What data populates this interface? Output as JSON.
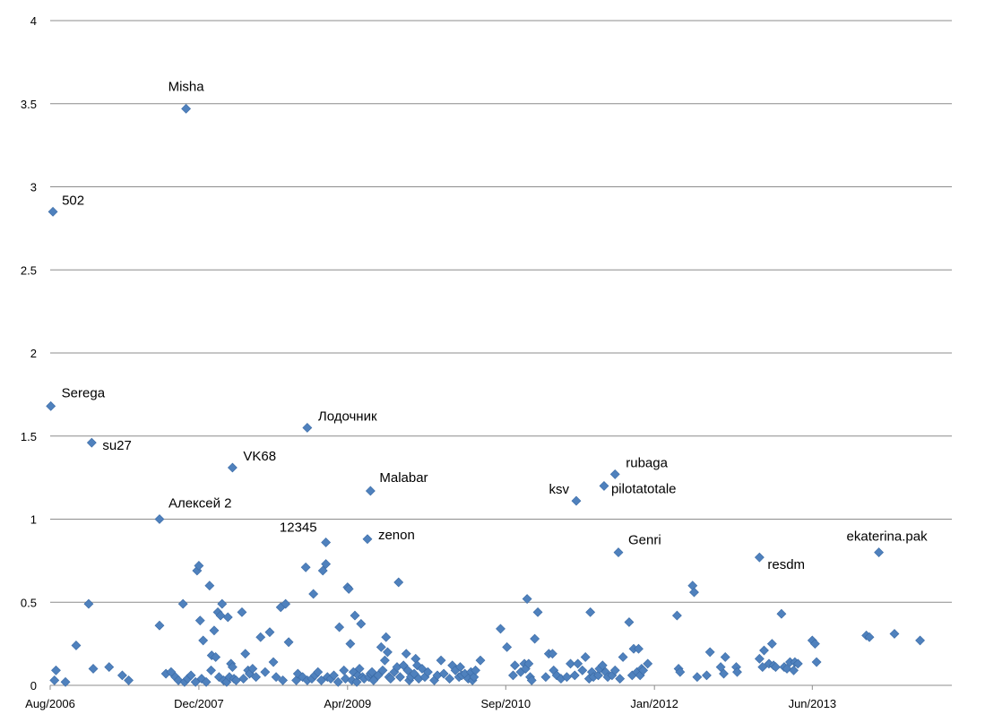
{
  "chart_data": {
    "type": "scatter",
    "title": "",
    "xlabel": "",
    "ylabel": "",
    "xaxis": {
      "min": "2006-08-01",
      "max": "2014-09-01",
      "ticks": [
        "Aug/2006",
        "Dec/2007",
        "Apr/2009",
        "Sep/2010",
        "Jan/2012",
        "Jun/2013"
      ]
    },
    "yaxis": {
      "min": 0,
      "max": 4,
      "ticks": [
        "0",
        "0.5",
        "1",
        "1.5",
        "2",
        "2.5",
        "3",
        "3.5",
        "4"
      ]
    },
    "grid": true,
    "marker_color": "#4F81BD",
    "labeled_points": [
      {
        "label": "Misha",
        "x": "2007-10-20",
        "y": 3.47
      },
      {
        "label": "502",
        "x": "2006-08-10",
        "y": 2.85
      },
      {
        "label": "Serega",
        "x": "2006-08-03",
        "y": 1.68
      },
      {
        "label": "su27",
        "x": "2006-12-15",
        "y": 1.46
      },
      {
        "label": "Лодочник",
        "x": "2008-11-20",
        "y": 1.55
      },
      {
        "label": "VK68",
        "x": "2008-03-20",
        "y": 1.31
      },
      {
        "label": "Алексей 2",
        "x": "2007-07-25",
        "y": 1.0
      },
      {
        "label": "Malabar",
        "x": "2009-06-15",
        "y": 1.17
      },
      {
        "label": "12345",
        "x": "2009-01-20",
        "y": 0.86
      },
      {
        "label": "zenon",
        "x": "2009-06-05",
        "y": 0.88
      },
      {
        "label": "rubaga",
        "x": "2011-08-25",
        "y": 1.27
      },
      {
        "label": "pilotatotale",
        "x": "2011-07-20",
        "y": 1.2
      },
      {
        "label": "ksv",
        "x": "2011-04-20",
        "y": 1.11
      },
      {
        "label": "Genri",
        "x": "2011-09-05",
        "y": 0.8
      },
      {
        "label": "resdm",
        "x": "2012-12-10",
        "y": 0.77
      },
      {
        "label": "ekaterina.pak",
        "x": "2014-01-05",
        "y": 0.8
      }
    ],
    "points": [
      [
        "2006-08-15",
        0.03
      ],
      [
        "2006-08-20",
        0.09
      ],
      [
        "2006-09-20",
        0.02
      ],
      [
        "2006-10-25",
        0.24
      ],
      [
        "2006-12-05",
        0.49
      ],
      [
        "2006-12-20",
        0.1
      ],
      [
        "2007-02-10",
        0.11
      ],
      [
        "2007-03-25",
        0.06
      ],
      [
        "2007-04-15",
        0.03
      ],
      [
        "2007-07-25",
        0.36
      ],
      [
        "2007-08-15",
        0.07
      ],
      [
        "2007-09-01",
        0.08
      ],
      [
        "2007-09-15",
        0.05
      ],
      [
        "2007-09-25",
        0.03
      ],
      [
        "2007-10-10",
        0.49
      ],
      [
        "2007-10-15",
        0.02
      ],
      [
        "2007-10-25",
        0.04
      ],
      [
        "2007-11-05",
        0.06
      ],
      [
        "2007-11-20",
        0.02
      ],
      [
        "2007-11-25",
        0.69
      ],
      [
        "2007-12-01",
        0.72
      ],
      [
        "2007-12-05",
        0.39
      ],
      [
        "2007-12-10",
        0.04
      ],
      [
        "2007-12-15",
        0.27
      ],
      [
        "2007-12-25",
        0.02
      ],
      [
        "2008-01-05",
        0.6
      ],
      [
        "2008-01-10",
        0.09
      ],
      [
        "2008-01-12",
        0.18
      ],
      [
        "2008-01-20",
        0.33
      ],
      [
        "2008-01-25",
        0.17
      ],
      [
        "2008-02-01",
        0.44
      ],
      [
        "2008-02-05",
        0.05
      ],
      [
        "2008-02-10",
        0.42
      ],
      [
        "2008-02-15",
        0.49
      ],
      [
        "2008-02-20",
        0.03
      ],
      [
        "2008-03-01",
        0.02
      ],
      [
        "2008-03-05",
        0.41
      ],
      [
        "2008-03-10",
        0.05
      ],
      [
        "2008-03-15",
        0.13
      ],
      [
        "2008-03-20",
        0.11
      ],
      [
        "2008-03-25",
        0.04
      ],
      [
        "2008-04-01",
        0.03
      ],
      [
        "2008-04-20",
        0.44
      ],
      [
        "2008-04-25",
        0.04
      ],
      [
        "2008-05-01",
        0.19
      ],
      [
        "2008-05-10",
        0.09
      ],
      [
        "2008-05-15",
        0.07
      ],
      [
        "2008-05-25",
        0.1
      ],
      [
        "2008-06-05",
        0.05
      ],
      [
        "2008-06-20",
        0.29
      ],
      [
        "2008-07-05",
        0.08
      ],
      [
        "2008-07-20",
        0.32
      ],
      [
        "2008-08-01",
        0.14
      ],
      [
        "2008-08-10",
        0.05
      ],
      [
        "2008-08-25",
        0.47
      ],
      [
        "2008-09-01",
        0.03
      ],
      [
        "2008-09-10",
        0.49
      ],
      [
        "2008-09-20",
        0.26
      ],
      [
        "2008-10-15",
        0.03
      ],
      [
        "2008-10-20",
        0.07
      ],
      [
        "2008-11-05",
        0.05
      ],
      [
        "2008-11-15",
        0.71
      ],
      [
        "2008-11-20",
        0.03
      ],
      [
        "2008-12-05",
        0.04
      ],
      [
        "2008-12-10",
        0.55
      ],
      [
        "2008-12-15",
        0.06
      ],
      [
        "2008-12-25",
        0.08
      ],
      [
        "2009-01-05",
        0.03
      ],
      [
        "2009-01-10",
        0.69
      ],
      [
        "2009-01-20",
        0.73
      ],
      [
        "2009-01-25",
        0.05
      ],
      [
        "2009-02-05",
        0.04
      ],
      [
        "2009-02-15",
        0.06
      ],
      [
        "2009-03-01",
        0.02
      ],
      [
        "2009-03-05",
        0.35
      ],
      [
        "2009-03-20",
        0.09
      ],
      [
        "2009-03-25",
        0.04
      ],
      [
        "2009-04-01",
        0.59
      ],
      [
        "2009-04-05",
        0.58
      ],
      [
        "2009-04-10",
        0.25
      ],
      [
        "2009-04-15",
        0.03
      ],
      [
        "2009-04-20",
        0.08
      ],
      [
        "2009-04-25",
        0.42
      ],
      [
        "2009-05-01",
        0.02
      ],
      [
        "2009-05-05",
        0.06
      ],
      [
        "2009-05-10",
        0.1
      ],
      [
        "2009-05-15",
        0.37
      ],
      [
        "2009-05-20",
        0.05
      ],
      [
        "2009-05-25",
        0.04
      ],
      [
        "2009-06-10",
        0.05
      ],
      [
        "2009-06-15",
        0.07
      ],
      [
        "2009-06-20",
        0.08
      ],
      [
        "2009-06-25",
        0.03
      ],
      [
        "2009-07-10",
        0.06
      ],
      [
        "2009-07-20",
        0.23
      ],
      [
        "2009-07-25",
        0.09
      ],
      [
        "2009-08-01",
        0.15
      ],
      [
        "2009-08-05",
        0.29
      ],
      [
        "2009-08-10",
        0.2
      ],
      [
        "2009-08-15",
        0.05
      ],
      [
        "2009-08-20",
        0.04
      ],
      [
        "2009-09-01",
        0.08
      ],
      [
        "2009-09-10",
        0.11
      ],
      [
        "2009-09-15",
        0.62
      ],
      [
        "2009-09-20",
        0.05
      ],
      [
        "2009-10-01",
        0.12
      ],
      [
        "2009-10-10",
        0.19
      ],
      [
        "2009-10-15",
        0.09
      ],
      [
        "2009-10-20",
        0.03
      ],
      [
        "2009-10-25",
        0.05
      ],
      [
        "2009-11-05",
        0.07
      ],
      [
        "2009-11-10",
        0.16
      ],
      [
        "2009-11-15",
        0.12
      ],
      [
        "2009-11-20",
        0.04
      ],
      [
        "2009-12-01",
        0.1
      ],
      [
        "2009-12-10",
        0.05
      ],
      [
        "2009-12-20",
        0.08
      ],
      [
        "2010-01-10",
        0.03
      ],
      [
        "2010-01-20",
        0.06
      ],
      [
        "2010-02-01",
        0.15
      ],
      [
        "2010-02-10",
        0.07
      ],
      [
        "2010-03-01",
        0.04
      ],
      [
        "2010-03-10",
        0.12
      ],
      [
        "2010-03-20",
        0.09
      ],
      [
        "2010-04-01",
        0.05
      ],
      [
        "2010-04-05",
        0.11
      ],
      [
        "2010-04-10",
        0.06
      ],
      [
        "2010-04-20",
        0.07
      ],
      [
        "2010-05-01",
        0.04
      ],
      [
        "2010-05-10",
        0.08
      ],
      [
        "2010-05-15",
        0.03
      ],
      [
        "2010-05-20",
        0.05
      ],
      [
        "2010-05-25",
        0.09
      ],
      [
        "2010-06-10",
        0.15
      ],
      [
        "2010-08-15",
        0.34
      ],
      [
        "2010-09-05",
        0.23
      ],
      [
        "2010-09-25",
        0.06
      ],
      [
        "2010-10-01",
        0.12
      ],
      [
        "2010-10-20",
        0.08
      ],
      [
        "2010-11-01",
        0.13
      ],
      [
        "2010-11-05",
        0.1
      ],
      [
        "2010-11-10",
        0.52
      ],
      [
        "2010-11-15",
        0.13
      ],
      [
        "2010-11-20",
        0.05
      ],
      [
        "2010-11-25",
        0.03
      ],
      [
        "2010-12-05",
        0.28
      ],
      [
        "2010-12-15",
        0.44
      ],
      [
        "2011-01-10",
        0.05
      ],
      [
        "2011-01-20",
        0.19
      ],
      [
        "2011-02-01",
        0.19
      ],
      [
        "2011-02-05",
        0.09
      ],
      [
        "2011-02-15",
        0.06
      ],
      [
        "2011-03-01",
        0.04
      ],
      [
        "2011-03-20",
        0.05
      ],
      [
        "2011-04-01",
        0.13
      ],
      [
        "2011-04-15",
        0.06
      ],
      [
        "2011-04-25",
        0.13
      ],
      [
        "2011-05-10",
        0.09
      ],
      [
        "2011-05-20",
        0.17
      ],
      [
        "2011-06-01",
        0.04
      ],
      [
        "2011-06-05",
        0.44
      ],
      [
        "2011-06-10",
        0.08
      ],
      [
        "2011-06-15",
        0.05
      ],
      [
        "2011-07-01",
        0.06
      ],
      [
        "2011-07-05",
        0.1
      ],
      [
        "2011-07-15",
        0.12
      ],
      [
        "2011-07-25",
        0.08
      ],
      [
        "2011-08-01",
        0.05
      ],
      [
        "2011-08-15",
        0.06
      ],
      [
        "2011-08-25",
        0.09
      ],
      [
        "2011-09-10",
        0.04
      ],
      [
        "2011-09-20",
        0.17
      ],
      [
        "2011-10-10",
        0.38
      ],
      [
        "2011-10-20",
        0.06
      ],
      [
        "2011-10-25",
        0.22
      ],
      [
        "2011-11-05",
        0.08
      ],
      [
        "2011-11-10",
        0.22
      ],
      [
        "2011-11-15",
        0.06
      ],
      [
        "2011-11-20",
        0.1
      ],
      [
        "2011-11-25",
        0.09
      ],
      [
        "2011-12-10",
        0.13
      ],
      [
        "2012-03-15",
        0.42
      ],
      [
        "2012-03-20",
        0.1
      ],
      [
        "2012-03-25",
        0.08
      ],
      [
        "2012-05-05",
        0.6
      ],
      [
        "2012-05-10",
        0.56
      ],
      [
        "2012-05-20",
        0.05
      ],
      [
        "2012-06-20",
        0.06
      ],
      [
        "2012-07-01",
        0.2
      ],
      [
        "2012-08-05",
        0.11
      ],
      [
        "2012-08-15",
        0.07
      ],
      [
        "2012-08-20",
        0.17
      ],
      [
        "2012-09-25",
        0.11
      ],
      [
        "2012-09-28",
        0.08
      ],
      [
        "2012-12-10",
        0.16
      ],
      [
        "2012-12-20",
        0.11
      ],
      [
        "2012-12-25",
        0.21
      ],
      [
        "2013-01-10",
        0.13
      ],
      [
        "2013-01-20",
        0.25
      ],
      [
        "2013-01-25",
        0.12
      ],
      [
        "2013-02-01",
        0.11
      ],
      [
        "2013-02-20",
        0.43
      ],
      [
        "2013-03-01",
        0.11
      ],
      [
        "2013-03-10",
        0.1
      ],
      [
        "2013-03-20",
        0.14
      ],
      [
        "2013-04-01",
        0.09
      ],
      [
        "2013-04-05",
        0.14
      ],
      [
        "2013-04-15",
        0.13
      ],
      [
        "2013-06-01",
        0.27
      ],
      [
        "2013-06-10",
        0.25
      ],
      [
        "2013-06-15",
        0.14
      ],
      [
        "2013-11-25",
        0.3
      ],
      [
        "2013-12-05",
        0.29
      ],
      [
        "2014-02-25",
        0.31
      ],
      [
        "2014-05-20",
        0.27
      ]
    ]
  }
}
